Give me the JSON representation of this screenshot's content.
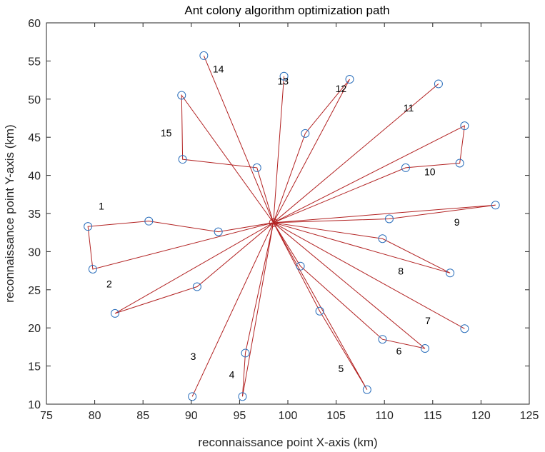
{
  "chart_data": {
    "type": "line",
    "title": "Ant colony algorithm optimization path",
    "xlabel": "reconnaissance point X-axis (km)",
    "ylabel": "reconnaissance point Y-axis (km)",
    "xlim": [
      75,
      125
    ],
    "ylim": [
      10,
      60
    ],
    "xticks": [
      75,
      80,
      85,
      90,
      95,
      100,
      105,
      110,
      115,
      120,
      125
    ],
    "yticks": [
      10,
      15,
      20,
      25,
      30,
      35,
      40,
      45,
      50,
      55,
      60
    ],
    "grid": false,
    "center": [
      98.5,
      33.8
    ],
    "line_color": "#b22222",
    "marker_color": "#2a6ebb",
    "routes": [
      {
        "label": "1",
        "label_pos": [
          80.7,
          35.5
        ],
        "points": [
          [
            92.8,
            32.6
          ],
          [
            85.6,
            34.0
          ],
          [
            79.3,
            33.3
          ],
          [
            79.8,
            27.7
          ]
        ]
      },
      {
        "label": "2",
        "label_pos": [
          81.5,
          25.3
        ],
        "points": [
          [
            90.6,
            25.4
          ],
          [
            82.1,
            21.9
          ]
        ]
      },
      {
        "label": "3",
        "label_pos": [
          90.2,
          15.8
        ],
        "points": [
          [
            90.1,
            11.0
          ]
        ]
      },
      {
        "label": "4",
        "label_pos": [
          94.2,
          13.4
        ],
        "points": [
          [
            95.6,
            16.7
          ],
          [
            95.3,
            11.0
          ]
        ]
      },
      {
        "label": "5",
        "label_pos": [
          105.5,
          14.2
        ],
        "points": [
          [
            103.3,
            22.2
          ],
          [
            108.2,
            11.9
          ]
        ]
      },
      {
        "label": "6",
        "label_pos": [
          111.5,
          16.5
        ],
        "points": [
          [
            101.3,
            28.1
          ],
          [
            109.8,
            18.5
          ],
          [
            114.2,
            17.3
          ]
        ]
      },
      {
        "label": "7",
        "label_pos": [
          114.5,
          20.5
        ],
        "points": [
          [
            118.3,
            19.9
          ]
        ]
      },
      {
        "label": "8",
        "label_pos": [
          111.7,
          27.0
        ],
        "points": [
          [
            109.8,
            31.7
          ],
          [
            116.8,
            27.2
          ]
        ]
      },
      {
        "label": "9",
        "label_pos": [
          117.5,
          33.4
        ],
        "points": [
          [
            110.5,
            34.3
          ],
          [
            121.5,
            36.1
          ]
        ]
      },
      {
        "label": "10",
        "label_pos": [
          114.7,
          40.0
        ],
        "points": [
          [
            112.2,
            41.0
          ],
          [
            117.8,
            41.6
          ],
          [
            118.3,
            46.5
          ]
        ]
      },
      {
        "label": "11",
        "label_pos": [
          112.5,
          48.4
        ],
        "points": [
          [
            115.6,
            52.0
          ]
        ]
      },
      {
        "label": "12",
        "label_pos": [
          105.5,
          50.9
        ],
        "points": [
          [
            101.8,
            45.5
          ],
          [
            106.4,
            52.6
          ]
        ]
      },
      {
        "label": "13",
        "label_pos": [
          99.5,
          51.9
        ],
        "points": [
          [
            99.6,
            53.0
          ]
        ]
      },
      {
        "label": "14",
        "label_pos": [
          92.8,
          53.5
        ],
        "points": [
          [
            91.3,
            55.7
          ]
        ]
      },
      {
        "label": "15",
        "label_pos": [
          87.4,
          45.1
        ],
        "points": [
          [
            96.8,
            41.0
          ],
          [
            89.1,
            42.1
          ],
          [
            89.0,
            50.5
          ]
        ]
      }
    ]
  }
}
